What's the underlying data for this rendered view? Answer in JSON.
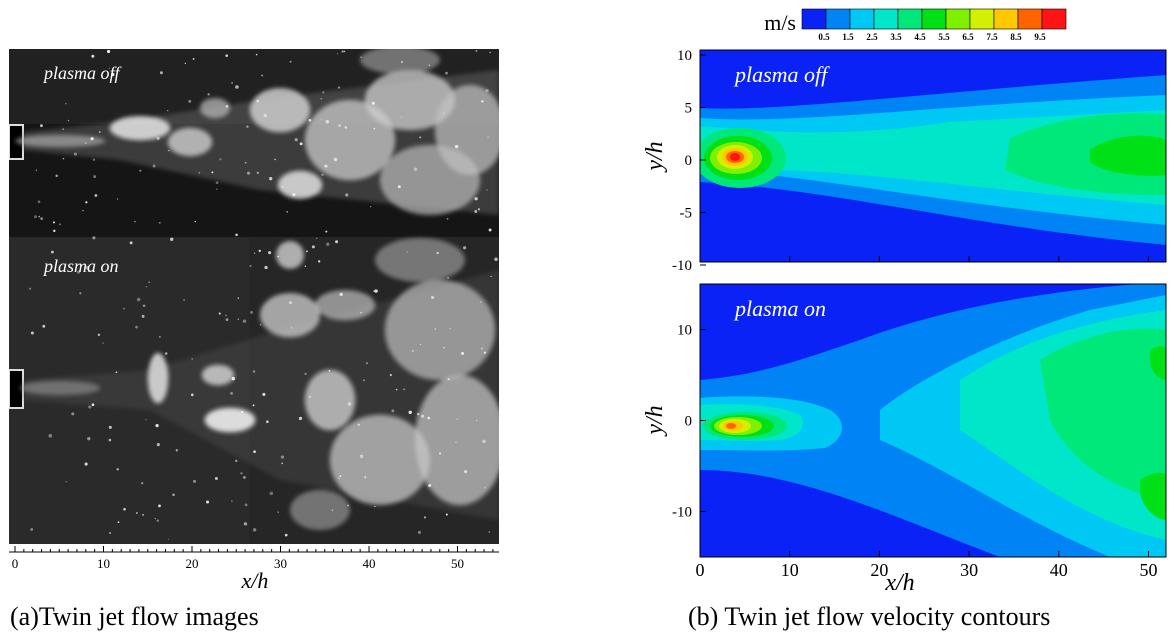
{
  "panel_a": {
    "photo_labels": [
      "plasma off",
      "plasma on"
    ],
    "x_ticks": [
      "0",
      "10",
      "20",
      "30",
      "40",
      "50"
    ],
    "x_label": "x/h",
    "caption": "(a)Twin jet flow images"
  },
  "panel_b": {
    "colorbar": {
      "unit": "m/s",
      "tick_labels": [
        "0.5",
        "1.5",
        "2.5",
        "3.5",
        "4.5",
        "5.5",
        "6.5",
        "7.5",
        "8.5",
        "9.5"
      ],
      "colors": [
        "#0a22f5",
        "#0083f5",
        "#00c8f5",
        "#00e6c8",
        "#00e87a",
        "#00e016",
        "#7ef000",
        "#d2f000",
        "#ffc800",
        "#ff6400",
        "#ff1414"
      ]
    },
    "top_plot": {
      "label": "plasma off",
      "y_ticks": [
        "10",
        "5",
        "0",
        "-5",
        "-10"
      ],
      "y_label": "y/h"
    },
    "bottom_plot": {
      "label": "plasma on",
      "y_ticks": [
        "10",
        "0",
        "-10"
      ],
      "y_label": "y/h"
    },
    "x_ticks": [
      "0",
      "10",
      "20",
      "30",
      "40",
      "50"
    ],
    "x_label": "x/h",
    "caption": "(b) Twin jet flow velocity contours"
  }
}
